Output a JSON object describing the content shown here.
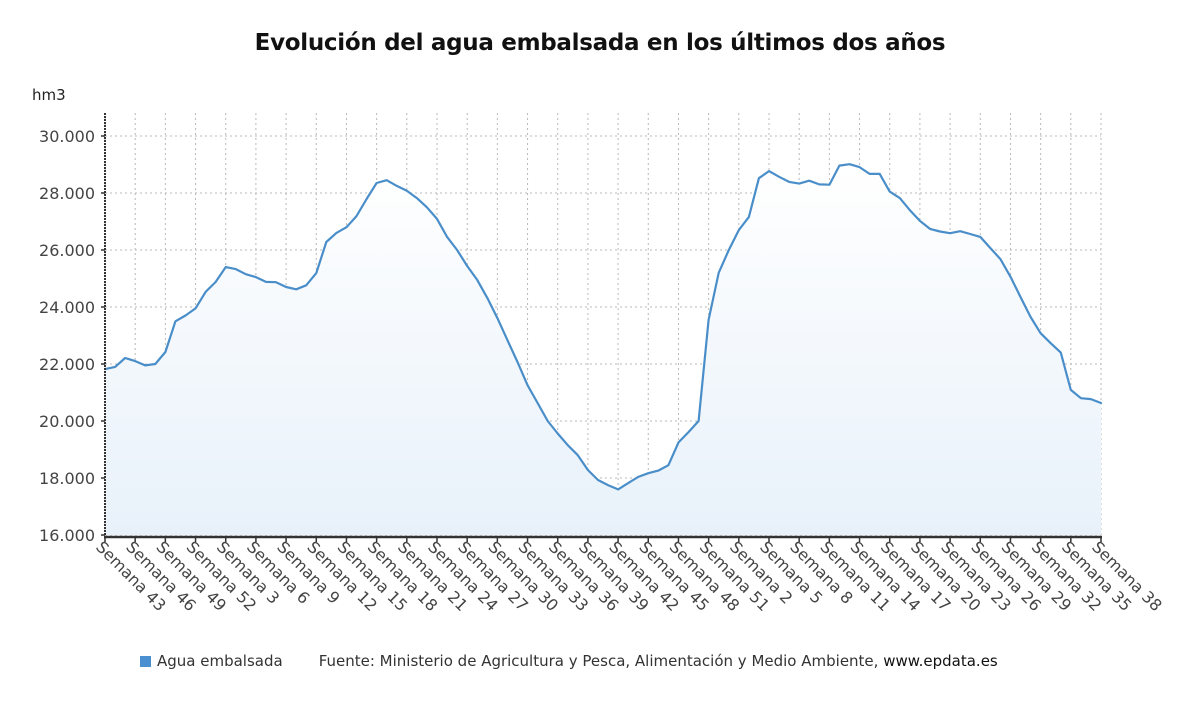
{
  "chart_data": {
    "type": "area",
    "title": "Evolución del agua embalsada en los últimos dos años",
    "ylabel": "hm3",
    "xlabel": "",
    "ylim": [
      16000,
      30000
    ],
    "yticks": [
      16000,
      18000,
      20000,
      22000,
      24000,
      26000,
      28000,
      30000
    ],
    "ytick_labels": [
      "16.000",
      "18.000",
      "20.000",
      "22.000",
      "24.000",
      "26.000",
      "28.000",
      "30.000"
    ],
    "grid": true,
    "legend_position": "bottom-left",
    "x": [
      "Semana 43",
      "Semana 44",
      "Semana 45",
      "Semana 46",
      "Semana 47",
      "Semana 48",
      "Semana 49",
      "Semana 50",
      "Semana 51",
      "Semana 52",
      "Semana 1",
      "Semana 2",
      "Semana 3",
      "Semana 4",
      "Semana 5",
      "Semana 6",
      "Semana 7",
      "Semana 8",
      "Semana 9",
      "Semana 10",
      "Semana 11",
      "Semana 12",
      "Semana 13",
      "Semana 14",
      "Semana 15",
      "Semana 16",
      "Semana 17",
      "Semana 18",
      "Semana 19",
      "Semana 20",
      "Semana 21",
      "Semana 22",
      "Semana 23",
      "Semana 24",
      "Semana 25",
      "Semana 26",
      "Semana 27",
      "Semana 28",
      "Semana 29",
      "Semana 30",
      "Semana 31",
      "Semana 32",
      "Semana 33",
      "Semana 34",
      "Semana 35",
      "Semana 36",
      "Semana 37",
      "Semana 38",
      "Semana 39",
      "Semana 40",
      "Semana 41",
      "Semana 42",
      "Semana 43",
      "Semana 44",
      "Semana 45",
      "Semana 46",
      "Semana 47",
      "Semana 48",
      "Semana 49",
      "Semana 50",
      "Semana 51",
      "Semana 52",
      "Semana 1",
      "Semana 2",
      "Semana 3",
      "Semana 4",
      "Semana 5",
      "Semana 6",
      "Semana 7",
      "Semana 8",
      "Semana 9",
      "Semana 10",
      "Semana 11",
      "Semana 12",
      "Semana 13",
      "Semana 14",
      "Semana 15",
      "Semana 16",
      "Semana 17",
      "Semana 18",
      "Semana 19",
      "Semana 20",
      "Semana 21",
      "Semana 22",
      "Semana 23",
      "Semana 24",
      "Semana 25",
      "Semana 26",
      "Semana 27",
      "Semana 28",
      "Semana 29",
      "Semana 30",
      "Semana 31",
      "Semana 32",
      "Semana 33",
      "Semana 34",
      "Semana 35",
      "Semana 36",
      "Semana 37",
      "Semana 38"
    ],
    "xtick_labels": [
      "Semana 43",
      "Semana 46",
      "Semana 49",
      "Semana 52",
      "Semana 3",
      "Semana 6",
      "Semana 9",
      "Semana 12",
      "Semana 15",
      "Semana 18",
      "Semana 21",
      "Semana 24",
      "Semana 27",
      "Semana 30",
      "Semana 33",
      "Semana 36",
      "Semana 39",
      "Semana 42",
      "Semana 45",
      "Semana 48",
      "Semana 51",
      "Semana 2",
      "Semana 5",
      "Semana 8",
      "Semana 11",
      "Semana 14",
      "Semana 17",
      "Semana 20",
      "Semana 23",
      "Semana 26",
      "Semana 29",
      "Semana 32",
      "Semana 35",
      "Semana 38"
    ],
    "xtick_every": 3,
    "series": [
      {
        "name": "Agua embalsada",
        "color": "#4a8ec9",
        "values": [
          21820,
          21900,
          22210,
          22100,
          21950,
          22000,
          22420,
          23500,
          23700,
          23950,
          24530,
          24880,
          25400,
          25330,
          25150,
          25050,
          24880,
          24870,
          24700,
          24620,
          24760,
          25190,
          26280,
          26600,
          26800,
          27190,
          27790,
          28350,
          28450,
          28250,
          28080,
          27820,
          27500,
          27090,
          26460,
          26000,
          25440,
          24950,
          24320,
          23610,
          22840,
          22070,
          21260,
          20630,
          20000,
          19560,
          19150,
          18800,
          18280,
          17930,
          17750,
          17600,
          17820,
          18040,
          18170,
          18260,
          18450,
          19250,
          19610,
          20000,
          23550,
          25200,
          26000,
          26700,
          27160,
          28520,
          28770,
          28570,
          28390,
          28330,
          28430,
          28300,
          28290,
          28960,
          29010,
          28910,
          28670,
          28670,
          28050,
          27820,
          27400,
          27020,
          26740,
          26650,
          26590,
          26660,
          26560,
          26460,
          26070,
          25680,
          25060,
          24350,
          23650,
          23080,
          22730,
          22400,
          21090,
          20800,
          20770,
          20630
        ]
      }
    ]
  },
  "legend": {
    "label": "Agua embalsada",
    "color": "#4a90d0"
  },
  "source": {
    "text": "Fuente: Ministerio de Agricultura y Pesca, Alimentación y Medio Ambiente, ",
    "link": "www.epdata.es"
  }
}
